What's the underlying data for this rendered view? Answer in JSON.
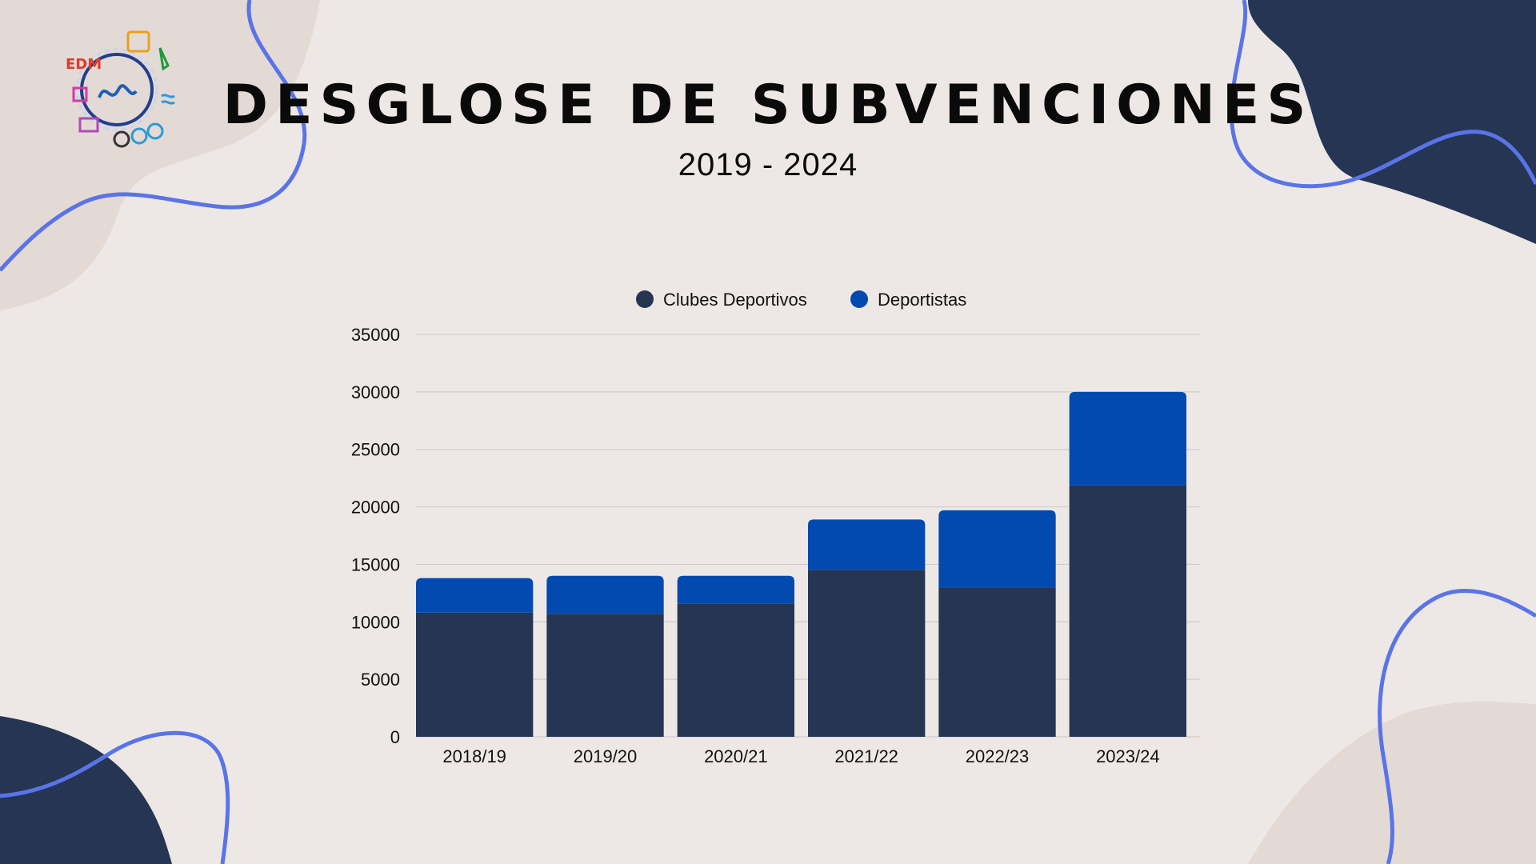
{
  "title": "DESGLOSE DE SUBVENCIONES",
  "subtitle": "2019 - 2024",
  "logo": {
    "text": "EDM",
    "icon": "sports-club-logo"
  },
  "colors": {
    "background": "#ede8e5",
    "navy": "#253553",
    "blue": "#024ab0",
    "outline": "#5a74e8",
    "blob_light": "#e3d9d5"
  },
  "chart_data": {
    "type": "bar",
    "stacked": true,
    "categories": [
      "2018/19",
      "2019/20",
      "2020/21",
      "2021/22",
      "2022/23",
      "2023/24"
    ],
    "series": [
      {
        "name": "Clubes Deportivos",
        "color": "#253553",
        "values": [
          10800,
          10700,
          11600,
          14500,
          13000,
          21900
        ]
      },
      {
        "name": "Deportistas",
        "color": "#024ab0",
        "values": [
          3000,
          3300,
          2400,
          4400,
          6700,
          8100
        ]
      }
    ],
    "ylim": [
      0,
      35000
    ],
    "yticks": [
      "0",
      "5000",
      "10000",
      "15000",
      "20000",
      "25000",
      "30000",
      "35000"
    ],
    "grid": true,
    "legend": "top-center",
    "xlabel": "",
    "ylabel": ""
  }
}
